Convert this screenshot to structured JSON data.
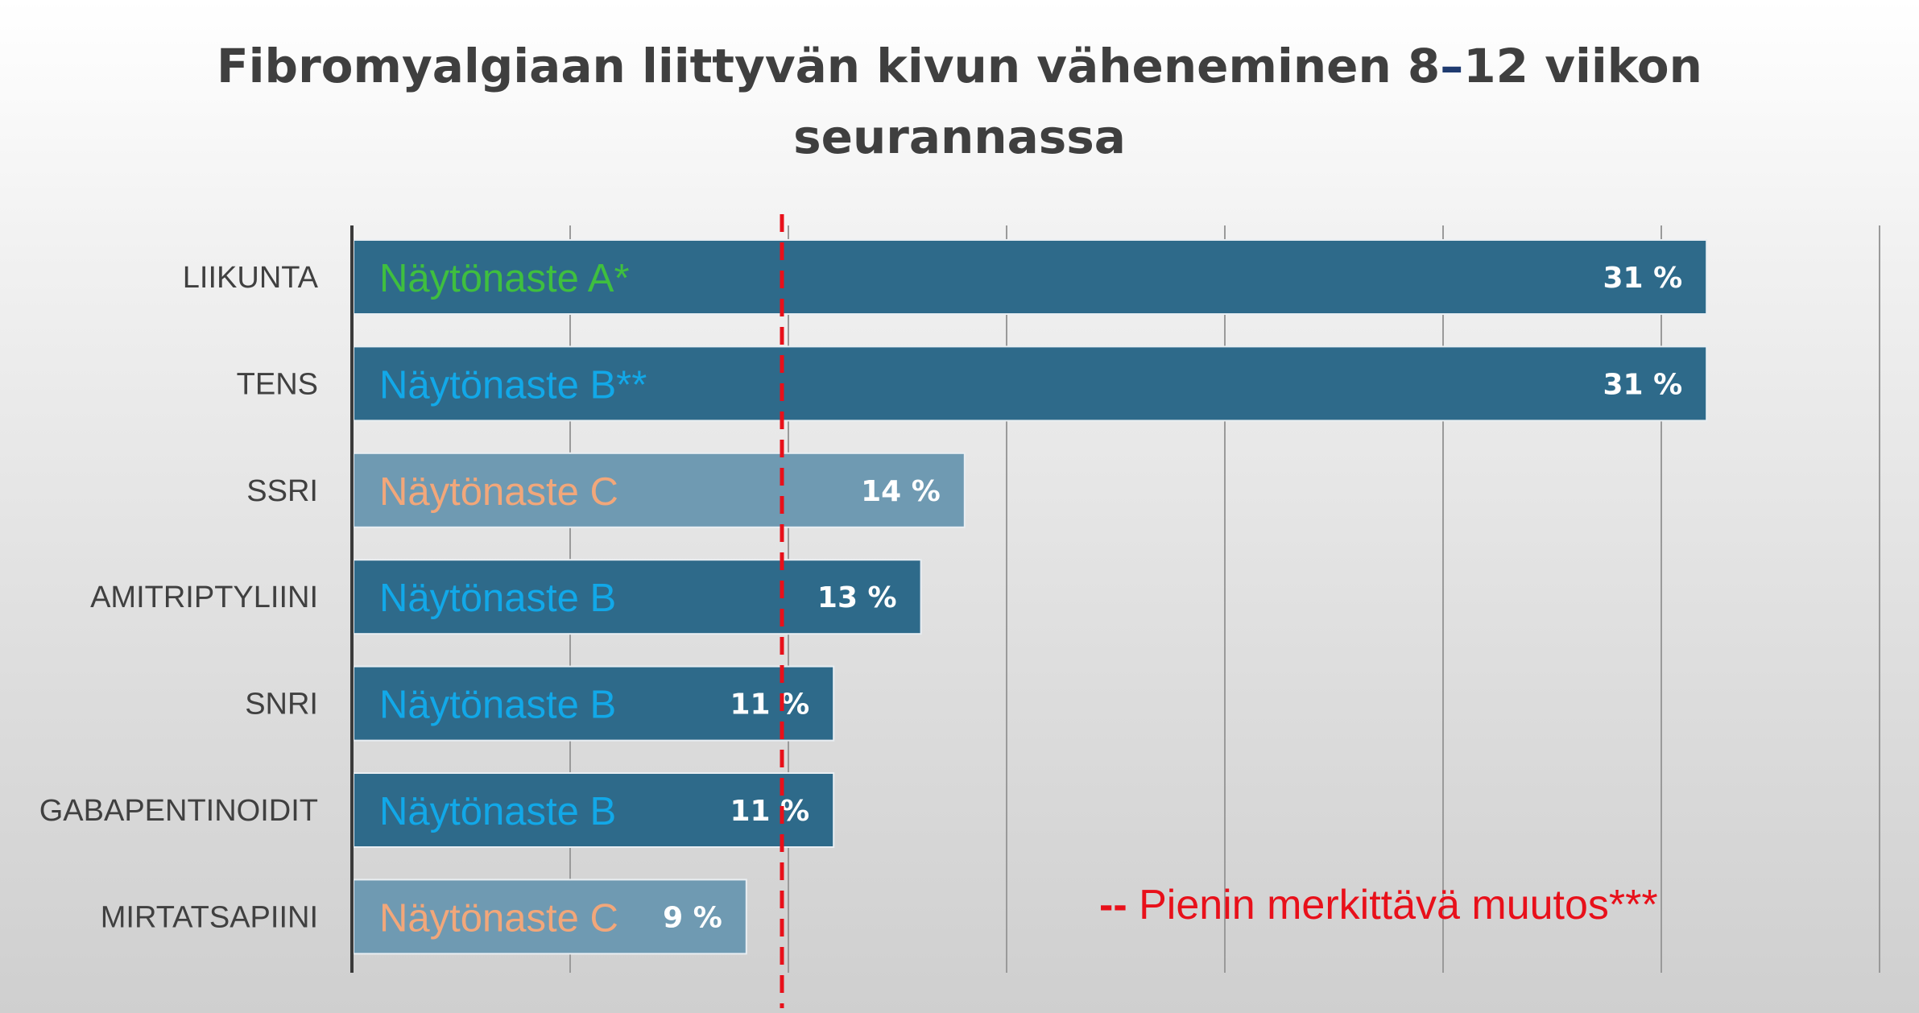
{
  "title": {
    "line1_a": "Fibromyalgiaan liittyvän kivun väheneminen 8",
    "line1_sep": "–",
    "line1_b": "12 viikon",
    "line2": "seurannassa"
  },
  "legend": {
    "marker": "--",
    "text": "Pienin  merkittävä muutos***",
    "color": "#e8101a"
  },
  "colors": {
    "bar_dark": "#2e6a8a",
    "bar_light": "#6f9ab2",
    "grade_A": "#3fbf3f",
    "grade_B": "#12a8e8",
    "grade_C": "#f2a77a",
    "threshold": "#e8101a"
  },
  "chart_data": {
    "type": "bar",
    "orientation": "horizontal",
    "title": "Fibromyalgiaan liittyvän kivun väheneminen 8–12 viikon seurannassa",
    "categories": [
      "LIIKUNTA",
      "TENS",
      "SSRI",
      "AMITRIPTYLIINI",
      "SNRI",
      "GABAPENTINOIDIT",
      "MIRTATSAPIINI"
    ],
    "values": [
      31,
      31,
      14,
      13,
      11,
      11,
      9
    ],
    "value_labels": [
      "31 %",
      "31 %",
      "14 %",
      "13 %",
      "11 %",
      "11 %",
      "9 %"
    ],
    "evidence_labels": [
      "Näytönaste A*",
      "Näytönaste B**",
      "Näytönaste C",
      "Näytönaste B",
      "Näytönaste B",
      "Näytönaste B",
      "Näytönaste C"
    ],
    "evidence_grades": [
      "A",
      "B",
      "C",
      "B",
      "B",
      "B",
      "C"
    ],
    "threshold": 10,
    "xlim": [
      0,
      35
    ],
    "grid": true
  }
}
